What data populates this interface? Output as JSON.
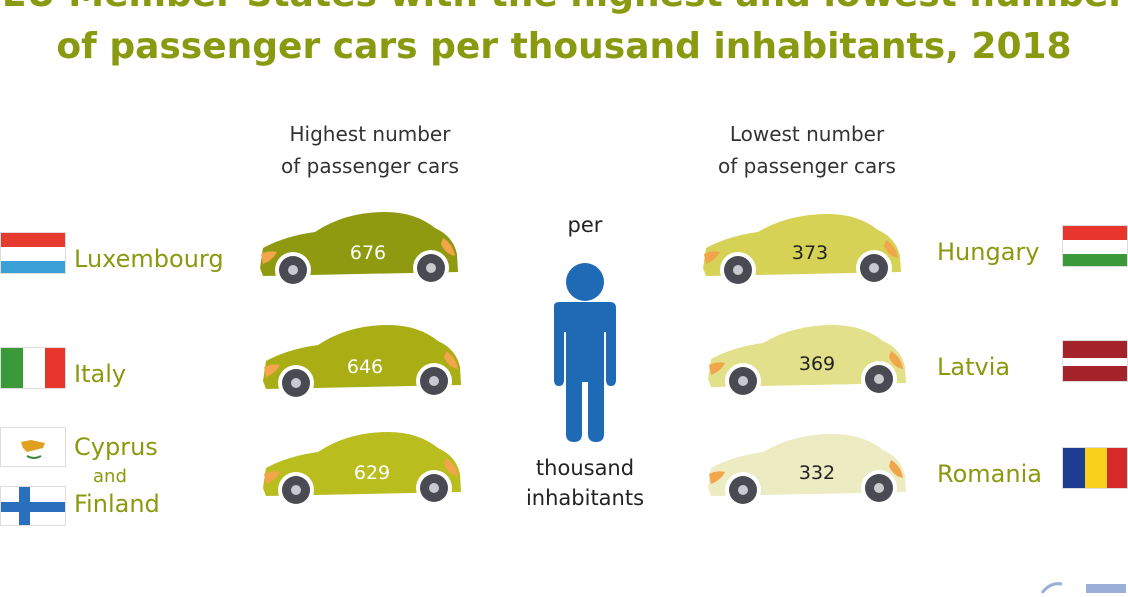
{
  "title": {
    "line1": "EU Member States with the highest and lowest number",
    "line2": "of passenger cars per thousand inhabitants, 2018"
  },
  "highest": {
    "heading_line1": "Highest number",
    "heading_line2": "of passenger cars",
    "items": [
      {
        "country": "Luxembourg",
        "value": "676",
        "car_color": "#8f9a10",
        "text_color": "#ffffff",
        "flag": "luxembourg-flag"
      },
      {
        "country": "Italy",
        "value": "646",
        "car_color": "#a8ae14",
        "text_color": "#ffffff",
        "flag": "italy-flag"
      },
      {
        "country": "Cyprus",
        "connector": "and",
        "country2": "Finland",
        "value": "629",
        "car_color": "#b9bd1e",
        "text_color": "#ffffff",
        "flag": "cyprus-flag",
        "flag2": "finland-flag"
      }
    ]
  },
  "lowest": {
    "heading_line1": "Lowest number",
    "heading_line2": "of passenger cars",
    "items": [
      {
        "country": "Hungary",
        "value": "373",
        "car_color": "#d6d255",
        "text_color": "#222222",
        "flag": "hungary-flag"
      },
      {
        "country": "Latvia",
        "value": "369",
        "car_color": "#e2e08a",
        "text_color": "#222222",
        "flag": "latvia-flag"
      },
      {
        "country": "Romania",
        "value": "332",
        "car_color": "#ecebc2",
        "text_color": "#222222",
        "flag": "romania-flag"
      }
    ]
  },
  "center": {
    "top": "per",
    "bottom_line1": "thousand",
    "bottom_line2": "inhabitants"
  },
  "colors": {
    "title": "#8a9a10",
    "country_text": "#8a9a10",
    "person": "#1f6ab5",
    "wheel": "#4a4a52",
    "light": "#f2a54a"
  },
  "icons": [
    "person-icon",
    "car-icon",
    "eurostat-logo-icon"
  ]
}
